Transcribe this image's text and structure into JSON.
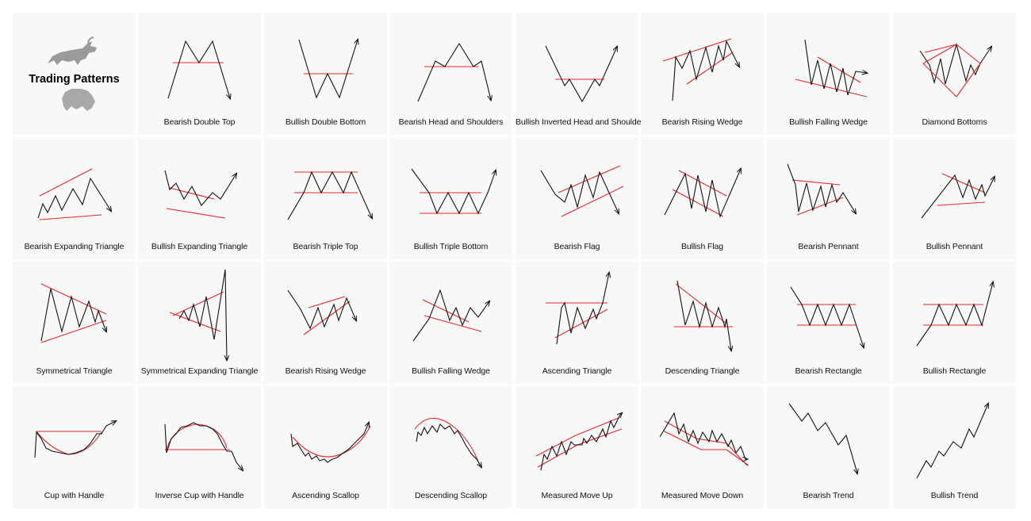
{
  "title": "Trading Patterns",
  "patterns": [
    {
      "label": "Bearish Double Top",
      "icon": "bearish-double-top-pattern"
    },
    {
      "label": "Bullish Double Bottom",
      "icon": "bullish-double-bottom-pattern"
    },
    {
      "label": "Bearish Head and Shoulders",
      "icon": "bearish-head-and-shoulders-pattern"
    },
    {
      "label": "Bullish Inverted Head and Shoulders",
      "icon": "bullish-inverted-head-and-shoulders-pattern"
    },
    {
      "label": "Bearish Rising Wedge",
      "icon": "bearish-rising-wedge-pattern"
    },
    {
      "label": "Bullish Falling Wedge",
      "icon": "bullish-falling-wedge-pattern"
    },
    {
      "label": "Diamond Bottoms",
      "icon": "diamond-bottoms-pattern"
    },
    {
      "label": "Bearish Expanding Triangle",
      "icon": "bearish-expanding-triangle-pattern"
    },
    {
      "label": "Bullish Expanding Triangle",
      "icon": "bullish-expanding-triangle-pattern"
    },
    {
      "label": "Bearish Triple Top",
      "icon": "bearish-triple-top-pattern"
    },
    {
      "label": "Bullish Triple Bottom",
      "icon": "bullish-triple-bottom-pattern"
    },
    {
      "label": "Bearish Flag",
      "icon": "bearish-flag-pattern"
    },
    {
      "label": "Bullish Flag",
      "icon": "bullish-flag-pattern"
    },
    {
      "label": "Bearish Pennant",
      "icon": "bearish-pennant-pattern"
    },
    {
      "label": "Bullish Pennant",
      "icon": "bullish-pennant-pattern"
    },
    {
      "label": "Symmetrical Triangle",
      "icon": "symmetrical-triangle-pattern"
    },
    {
      "label": "Symmetrical Expanding Triangle",
      "icon": "symmetrical-expanding-triangle-pattern"
    },
    {
      "label": "Bearish Rising Wedge",
      "icon": "bearish-rising-wedge-2-pattern"
    },
    {
      "label": "Bullish Falling Wedge",
      "icon": "bullish-falling-wedge-2-pattern"
    },
    {
      "label": "Ascending Triangle",
      "icon": "ascending-triangle-pattern"
    },
    {
      "label": "Descending Triangle",
      "icon": "descending-triangle-pattern"
    },
    {
      "label": "Bearish Rectangle",
      "icon": "bearish-rectangle-pattern"
    },
    {
      "label": "Bullish Rectangle",
      "icon": "bullish-rectangle-pattern"
    },
    {
      "label": "Cup with Handle",
      "icon": "cup-with-handle-pattern"
    },
    {
      "label": "Inverse Cup with Handle",
      "icon": "inverse-cup-with-handle-pattern"
    },
    {
      "label": "Ascending Scallop",
      "icon": "ascending-scallop-pattern"
    },
    {
      "label": "Descending Scallop",
      "icon": "descending-scallop-pattern"
    },
    {
      "label": "Measured Move Up",
      "icon": "measured-move-up-pattern"
    },
    {
      "label": "Measured Move Down",
      "icon": "measured-move-down-pattern"
    },
    {
      "label": "Bearish Trend",
      "icon": "bearish-trend-pattern"
    },
    {
      "label": "Bullish Trend",
      "icon": "bullish-trend-pattern"
    }
  ],
  "colors": {
    "price": "#111111",
    "support_resistance": "#e8262a",
    "cell_background": "#f8f8f8",
    "mascot": "#9a9a9a"
  }
}
